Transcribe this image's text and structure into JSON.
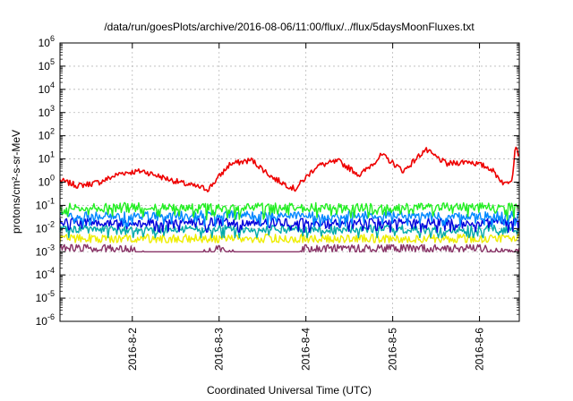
{
  "chart_data": {
    "type": "line",
    "title": "/data/run/goesPlots/archive/2016-08-06/11:00/flux/../flux/5daysMoonFluxes.txt",
    "xlabel": "Coordinated Universal Time (UTC)",
    "ylabel": "protons/cm²-s-sr-MeV",
    "yscale": "log",
    "ylim": [
      1e-06,
      1000000.0
    ],
    "xlim": [
      "2016-08-01 04:00",
      "2016-08-06 11:00"
    ],
    "grid": true,
    "legend": "none",
    "x_ticks": [
      {
        "label": "2016-8-2",
        "value": "2016-08-02 00:00"
      },
      {
        "label": "2016-8-3",
        "value": "2016-08-03 00:00"
      },
      {
        "label": "2016-8-4",
        "value": "2016-08-04 00:00"
      },
      {
        "label": "2016-8-5",
        "value": "2016-08-05 00:00"
      },
      {
        "label": "2016-8-6",
        "value": "2016-08-06 00:00"
      }
    ],
    "y_ticks": [
      {
        "base": "10",
        "exp": "-6",
        "value": 1e-06
      },
      {
        "base": "10",
        "exp": "-5",
        "value": 1e-05
      },
      {
        "base": "10",
        "exp": "-4",
        "value": 0.0001
      },
      {
        "base": "10",
        "exp": "-3",
        "value": 0.001
      },
      {
        "base": "10",
        "exp": "-2",
        "value": 0.01
      },
      {
        "base": "10",
        "exp": "-1",
        "value": 0.1
      },
      {
        "base": "10",
        "exp": "0",
        "value": 1
      },
      {
        "base": "10",
        "exp": "1",
        "value": 10
      },
      {
        "base": "10",
        "exp": "2",
        "value": 100
      },
      {
        "base": "10",
        "exp": "3",
        "value": 1000
      },
      {
        "base": "10",
        "exp": "4",
        "value": 10000
      },
      {
        "base": "10",
        "exp": "5",
        "value": 100000
      },
      {
        "base": "10",
        "exp": "6",
        "value": 1000000
      }
    ],
    "series": [
      {
        "color": "#ee0000",
        "x": [
          "2016-08-01 04:00",
          "2016-08-01 09:00",
          "2016-08-01 15:00",
          "2016-08-01 21:00",
          "2016-08-02 03:00",
          "2016-08-02 09:00",
          "2016-08-02 15:00",
          "2016-08-02 21:00",
          "2016-08-03 03:00",
          "2016-08-03 09:00",
          "2016-08-03 15:00",
          "2016-08-03 21:00",
          "2016-08-04 03:00",
          "2016-08-04 09:00",
          "2016-08-04 15:00",
          "2016-08-04 21:00",
          "2016-08-05 03:00",
          "2016-08-05 09:00",
          "2016-08-05 15:00",
          "2016-08-05 21:00",
          "2016-08-06 03:00",
          "2016-08-06 07:00",
          "2016-08-06 09:00",
          "2016-08-06 10:00",
          "2016-08-06 11:00"
        ],
        "values": [
          1.2,
          0.7,
          1.0,
          2.5,
          3.0,
          1.5,
          0.8,
          0.5,
          6.0,
          9.0,
          1.5,
          0.5,
          5.0,
          8.0,
          2.0,
          15.0,
          3.0,
          25.0,
          6.0,
          8.0,
          4.0,
          0.8,
          1.5,
          45.0,
          12.0
        ]
      },
      {
        "color": "#22ee22",
        "x": [
          "2016-08-01 04:00",
          "2016-08-02 00:00",
          "2016-08-03 00:00",
          "2016-08-04 00:00",
          "2016-08-05 00:00",
          "2016-08-06 00:00",
          "2016-08-06 11:00"
        ],
        "values": [
          0.08,
          0.09,
          0.08,
          0.09,
          0.08,
          0.09,
          0.08
        ],
        "min": 0.02,
        "max": 0.15
      },
      {
        "color": "#0088ff",
        "x": [
          "2016-08-01 04:00",
          "2016-08-02 00:00",
          "2016-08-03 00:00",
          "2016-08-04 00:00",
          "2016-08-05 00:00",
          "2016-08-06 00:00",
          "2016-08-06 11:00"
        ],
        "values": [
          0.04,
          0.035,
          0.04,
          0.035,
          0.04,
          0.035,
          0.04
        ],
        "min": 0.012,
        "max": 0.08
      },
      {
        "color": "#0000dd",
        "x": [
          "2016-08-01 04:00",
          "2016-08-02 00:00",
          "2016-08-03 00:00",
          "2016-08-04 00:00",
          "2016-08-05 00:00",
          "2016-08-06 00:00",
          "2016-08-06 11:00"
        ],
        "values": [
          0.02,
          0.018,
          0.02,
          0.018,
          0.02,
          0.018,
          0.02
        ],
        "min": 0.007,
        "max": 0.05
      },
      {
        "color": "#00aaaa",
        "x": [
          "2016-08-01 04:00",
          "2016-08-02 00:00",
          "2016-08-03 00:00",
          "2016-08-04 00:00",
          "2016-08-05 00:00",
          "2016-08-06 00:00",
          "2016-08-06 11:00"
        ],
        "values": [
          0.01,
          0.009,
          0.01,
          0.009,
          0.01,
          0.009,
          0.01
        ],
        "min": 0.004,
        "max": 0.02
      },
      {
        "color": "#eeee00",
        "x": [
          "2016-08-01 04:00",
          "2016-08-02 00:00",
          "2016-08-03 00:00",
          "2016-08-04 00:00",
          "2016-08-05 00:00",
          "2016-08-06 00:00",
          "2016-08-06 11:00"
        ],
        "values": [
          0.004,
          0.0038,
          0.004,
          0.0038,
          0.004,
          0.0038,
          0.004
        ],
        "min": 0.0025,
        "max": 0.006
      },
      {
        "color": "#883366",
        "x": [
          "2016-08-01 04:00",
          "2016-08-02 00:00",
          "2016-08-02 08:00",
          "2016-08-03 00:00",
          "2016-08-03 16:00",
          "2016-08-04 00:00",
          "2016-08-05 00:00",
          "2016-08-06 00:00",
          "2016-08-06 10:00",
          "2016-08-06 11:00"
        ],
        "values": [
          0.0015,
          0.0015,
          0.0003,
          0.0015,
          0.00015,
          0.0015,
          0.0015,
          0.0015,
          0.0008,
          0.0015
        ],
        "min": 0.001,
        "max": 0.002
      }
    ]
  }
}
